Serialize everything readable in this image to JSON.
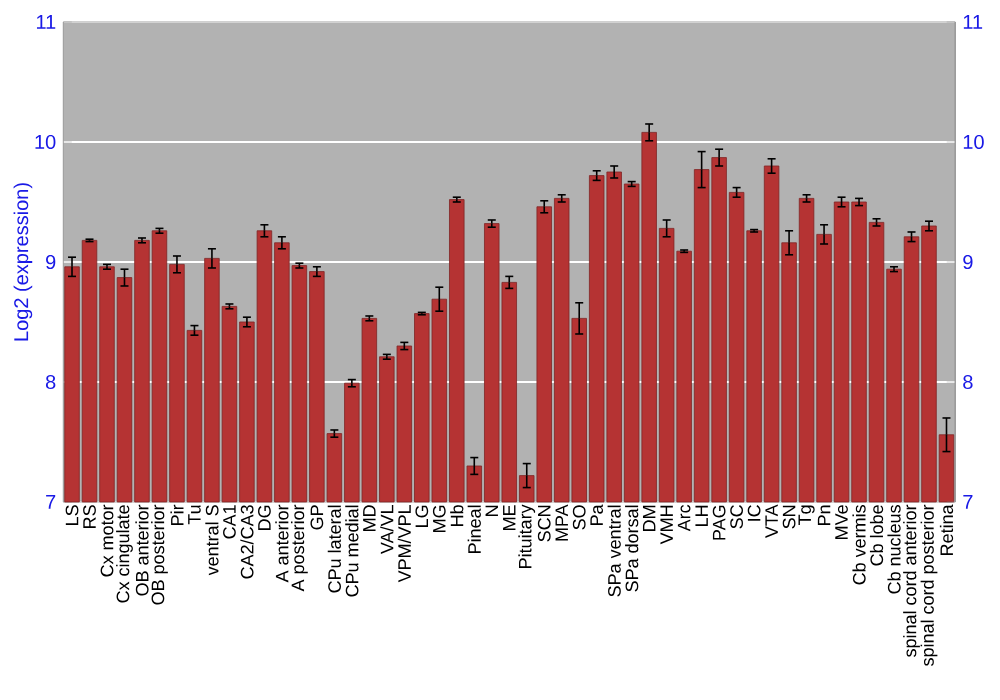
{
  "chart_data": {
    "type": "bar",
    "ylabel": "Log2 (expression)",
    "categories": [
      "LS",
      "RS",
      "Cx motor",
      "Cx cingulate",
      "OB anterior",
      "OB posterior",
      "Pir",
      "Tu",
      "ventral S",
      "CA1",
      "CA2/CA3",
      "DG",
      "A anterior",
      "A posterior",
      "GP",
      "CPu lateral",
      "CPu medial",
      "MD",
      "VA/VL",
      "VPM/VPL",
      "LG",
      "MG",
      "Hb",
      "Pineal",
      "N",
      "ME",
      "Pituitary",
      "SCN",
      "MPA",
      "SO",
      "Pa",
      "SPa ventral",
      "SPa dorsal",
      "DM",
      "VMH",
      "Arc",
      "LH",
      "PAG",
      "SC",
      "IC",
      "VTA",
      "SN",
      "Tg",
      "Pn",
      "MVe",
      "Cb vermis",
      "Cb lobe",
      "Cb nucleus",
      "spinal cord anterior",
      "spinal cord posterior",
      "Retina"
    ],
    "values": [
      8.96,
      9.18,
      8.96,
      8.87,
      9.18,
      9.26,
      8.98,
      8.43,
      9.03,
      8.63,
      8.5,
      9.26,
      9.16,
      8.97,
      8.92,
      7.57,
      7.99,
      8.53,
      8.21,
      8.3,
      8.57,
      8.69,
      9.52,
      7.3,
      9.32,
      8.83,
      7.22,
      9.46,
      9.53,
      8.53,
      9.72,
      9.75,
      9.65,
      10.08,
      9.28,
      9.09,
      9.77,
      9.87,
      9.58,
      9.26,
      9.8,
      9.16,
      9.53,
      9.23,
      9.5,
      9.5,
      9.33,
      8.94,
      9.21,
      9.3,
      7.56
    ],
    "errors": [
      0.08,
      0.01,
      0.02,
      0.07,
      0.02,
      0.02,
      0.07,
      0.04,
      0.08,
      0.02,
      0.04,
      0.05,
      0.05,
      0.02,
      0.04,
      0.03,
      0.03,
      0.02,
      0.02,
      0.03,
      0.01,
      0.1,
      0.02,
      0.07,
      0.03,
      0.05,
      0.1,
      0.05,
      0.03,
      0.13,
      0.04,
      0.05,
      0.02,
      0.07,
      0.07,
      0.01,
      0.15,
      0.07,
      0.04,
      0.01,
      0.06,
      0.1,
      0.03,
      0.08,
      0.04,
      0.03,
      0.03,
      0.02,
      0.04,
      0.04,
      0.14
    ],
    "color": "#b53333",
    "ylim": [
      7,
      11
    ],
    "yticks": [
      7,
      8,
      9,
      10,
      11
    ],
    "y2lim": [
      7,
      11
    ],
    "y2ticks": [
      7,
      8,
      9,
      10,
      11
    ],
    "grid": "y"
  }
}
